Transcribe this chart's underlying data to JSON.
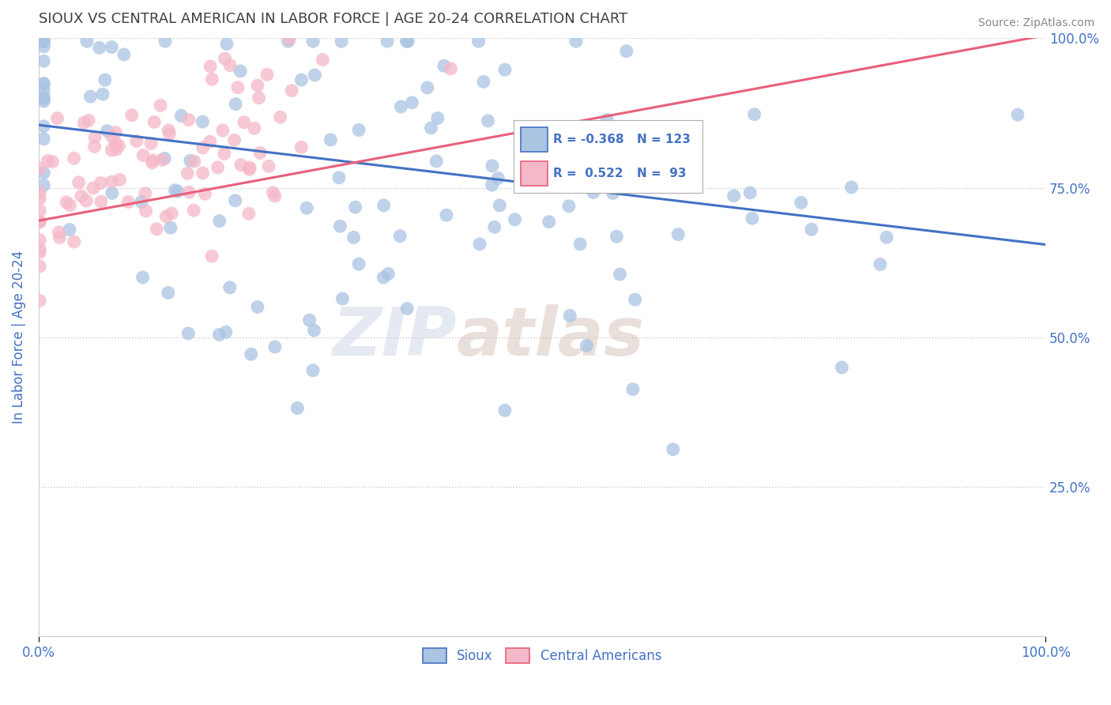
{
  "title": "SIOUX VS CENTRAL AMERICAN IN LABOR FORCE | AGE 20-24 CORRELATION CHART",
  "source": "Source: ZipAtlas.com",
  "ylabel": "In Labor Force | Age 20-24",
  "xlim": [
    0.0,
    1.0
  ],
  "ylim": [
    0.0,
    1.0
  ],
  "sioux_R": -0.368,
  "sioux_N": 123,
  "central_R": 0.522,
  "central_N": 93,
  "sioux_color": "#aac4e2",
  "central_color": "#f5b8c8",
  "sioux_line_color": "#4472c4",
  "central_line_color": "#e8607a",
  "legend_sioux_label": "Sioux",
  "legend_central_label": "Central Americans",
  "watermark_zip": "ZIP",
  "watermark_atlas": "atlas",
  "background_color": "#ffffff",
  "grid_color": "#c8c8c8",
  "title_color": "#404040",
  "axis_label_color": "#4472c4",
  "right_ytick_color": "#4472c4",
  "sioux_line_start_y": 0.855,
  "sioux_line_end_y": 0.655,
  "central_line_start_y": 0.695,
  "central_line_end_y": 1.005
}
